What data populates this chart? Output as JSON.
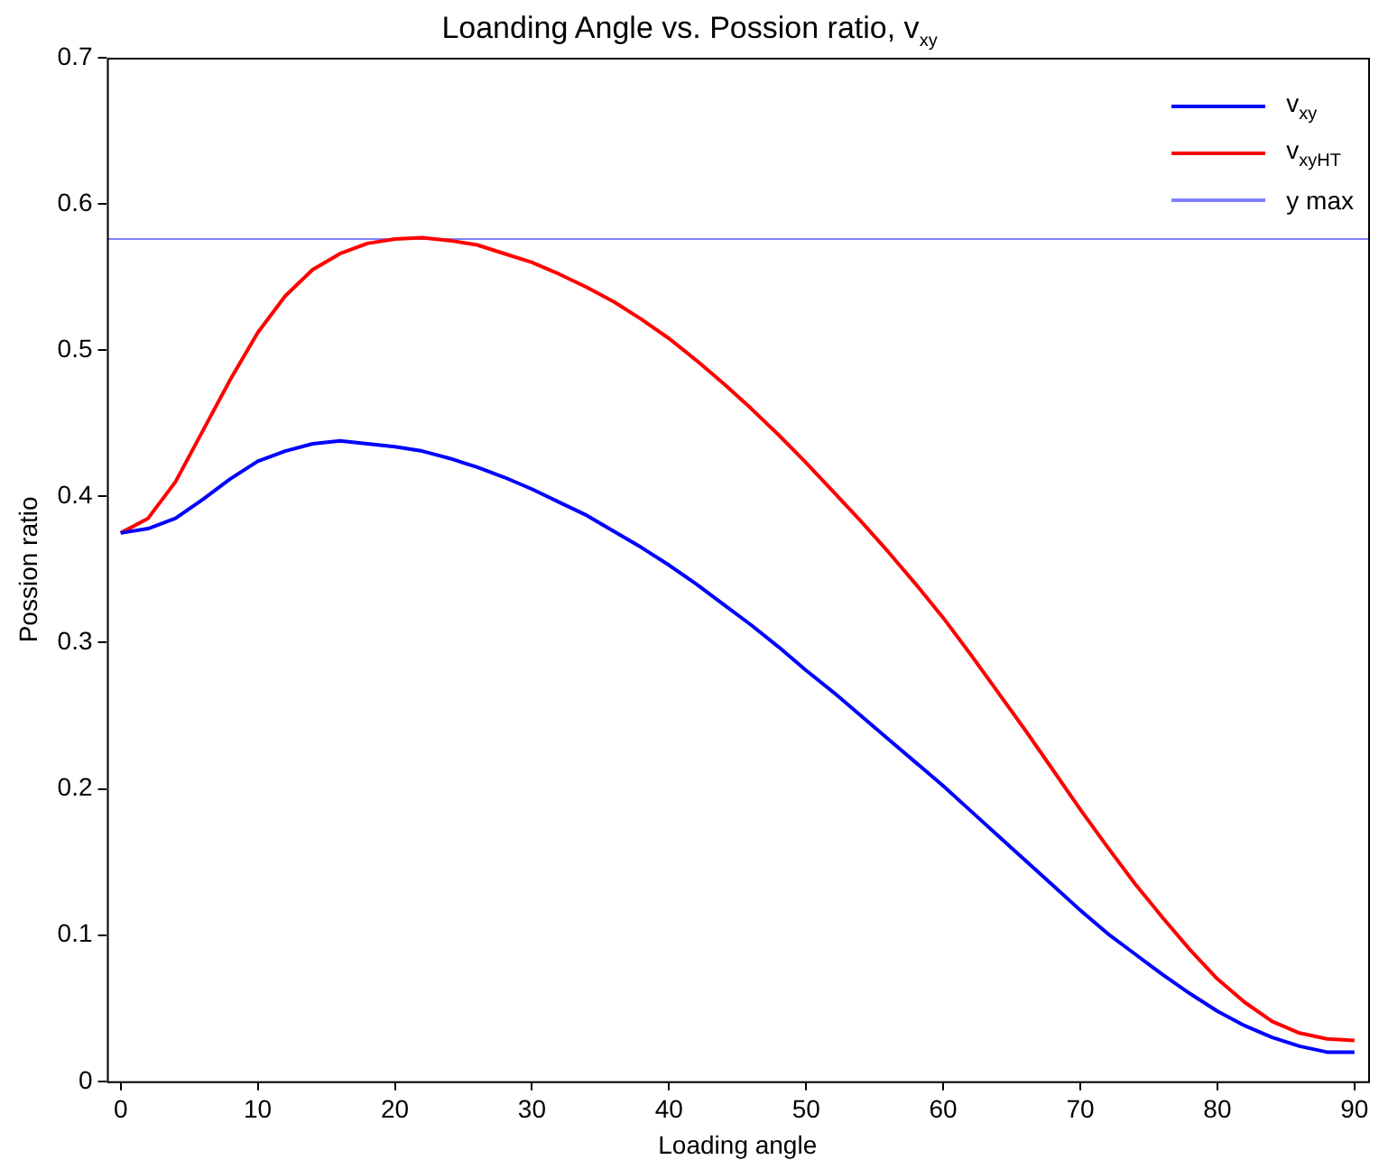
{
  "chart_data": {
    "type": "line",
    "title": "Loanding Angle vs. Possion ratio, v$_{xy}$",
    "xlabel": "Loading angle",
    "ylabel": "Possion ratio",
    "x": [
      0,
      2,
      4,
      6,
      8,
      10,
      12,
      14,
      16,
      18,
      20,
      22,
      24,
      26,
      28,
      30,
      32,
      34,
      36,
      38,
      40,
      42,
      44,
      46,
      48,
      50,
      52,
      54,
      56,
      58,
      60,
      62,
      64,
      66,
      68,
      70,
      72,
      74,
      76,
      78,
      80,
      82,
      84,
      86,
      88,
      90
    ],
    "series": [
      {
        "name": "v$_{xy}$",
        "color": "#0000ff",
        "values": [
          0.375,
          0.378,
          0.385,
          0.398,
          0.412,
          0.424,
          0.431,
          0.436,
          0.438,
          0.436,
          0.434,
          0.431,
          0.426,
          0.42,
          0.413,
          0.405,
          0.396,
          0.387,
          0.376,
          0.365,
          0.353,
          0.34,
          0.326,
          0.312,
          0.297,
          0.281,
          0.266,
          0.25,
          0.234,
          0.218,
          0.202,
          0.185,
          0.168,
          0.151,
          0.134,
          0.117,
          0.101,
          0.087,
          0.073,
          0.06,
          0.048,
          0.038,
          0.03,
          0.024,
          0.02,
          0.02
        ]
      },
      {
        "name": "v$_{xyHT}$",
        "color": "#ff0000",
        "values": [
          0.375,
          0.385,
          0.41,
          0.445,
          0.48,
          0.512,
          0.537,
          0.555,
          0.566,
          0.573,
          0.576,
          0.577,
          0.575,
          0.572,
          0.566,
          0.56,
          0.552,
          0.543,
          0.533,
          0.521,
          0.508,
          0.493,
          0.477,
          0.46,
          0.442,
          0.423,
          0.403,
          0.383,
          0.362,
          0.34,
          0.317,
          0.292,
          0.266,
          0.24,
          0.213,
          0.186,
          0.16,
          0.135,
          0.112,
          0.09,
          0.07,
          0.054,
          0.041,
          0.033,
          0.029,
          0.028
        ]
      },
      {
        "name": "y max",
        "color": "#8080ff",
        "x": [
          -1,
          91
        ],
        "values": [
          0.576,
          0.576
        ]
      }
    ],
    "xlim": [
      -1,
      91
    ],
    "xticks": [
      0,
      10,
      20,
      30,
      40,
      50,
      60,
      70,
      80,
      90
    ],
    "ylim": [
      0,
      0.7
    ],
    "yticks": [
      0,
      0.1,
      0.2,
      0.3,
      0.4,
      0.5,
      0.6,
      0.7
    ],
    "grid": false,
    "legend": "top right",
    "marker": "none",
    "line_style": "solid"
  }
}
